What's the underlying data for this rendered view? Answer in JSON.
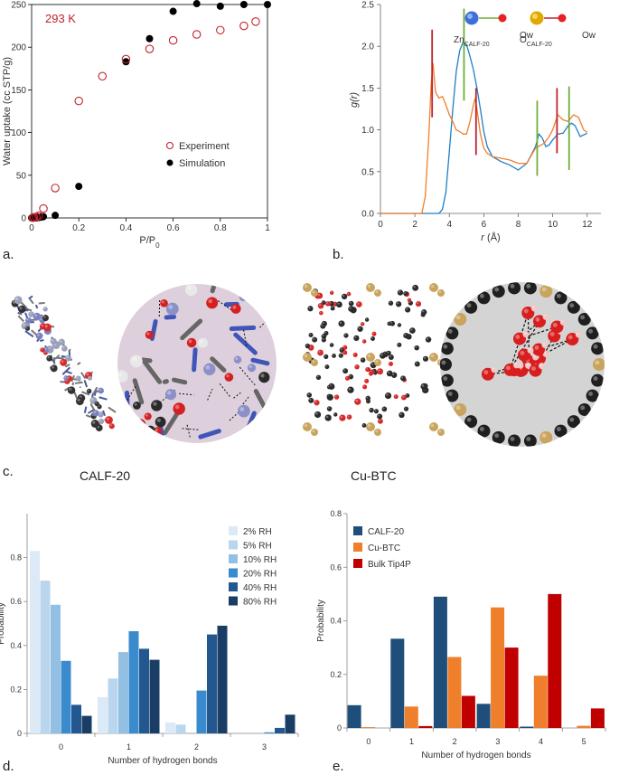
{
  "panels": {
    "a": {
      "letter": "a."
    },
    "b": {
      "letter": "b."
    },
    "c": {
      "letter": "c.",
      "left_label": "CALF-20",
      "right_label": "Cu-BTC"
    },
    "d": {
      "letter": "d."
    },
    "e": {
      "letter": "e."
    }
  },
  "colors": {
    "experiment": "#c0232c",
    "simulation": "#000000",
    "zn_curve": "#1f7fc8",
    "o_curve": "#f07f2c",
    "zn_marker": "#6fae3c",
    "o_marker": "#c0232c",
    "zn_atom": "#3d6fd8",
    "o_atom_mof": "#e0a800",
    "ow_atom": "#e82020"
  },
  "chart_data": [
    {
      "id": "a",
      "type": "scatter",
      "annotation": "293 K",
      "xlabel": "P/P0",
      "ylabel": "Water uptake (cc STP/g)",
      "xlim": [
        0,
        1
      ],
      "ylim": [
        0,
        250
      ],
      "xticks": [
        "0",
        "0.2",
        "0.4",
        "0.6",
        "0.8",
        "1"
      ],
      "yticks": [
        "0",
        "50",
        "100",
        "150",
        "200",
        "250"
      ],
      "legend_position": "center-right",
      "series": [
        {
          "name": "Experiment",
          "marker": "open-circle",
          "x": [
            0.005,
            0.01,
            0.02,
            0.03,
            0.05,
            0.1,
            0.2,
            0.3,
            0.4,
            0.5,
            0.6,
            0.7,
            0.8,
            0.9,
            0.95
          ],
          "y": [
            0.3,
            0.6,
            1.2,
            2.5,
            11,
            35,
            137,
            166,
            186,
            198,
            208,
            215,
            220,
            225,
            230
          ]
        },
        {
          "name": "Simulation",
          "marker": "filled-circle",
          "x": [
            0.0,
            0.005,
            0.01,
            0.015,
            0.02,
            0.025,
            0.03,
            0.035,
            0.04,
            0.045,
            0.05,
            0.1,
            0.2,
            0.4,
            0.5,
            0.6,
            0.7,
            0.8,
            0.9,
            1.0
          ],
          "y": [
            0,
            0,
            0,
            0,
            0,
            0.5,
            0.5,
            0.8,
            1,
            1.2,
            1.5,
            3,
            37,
            183,
            210,
            242,
            251,
            248,
            250,
            250
          ]
        }
      ]
    },
    {
      "id": "b",
      "type": "line",
      "xlabel": "r (Å)",
      "ylabel": "g(r)",
      "xlim": [
        0,
        12.8
      ],
      "ylim": [
        0,
        2.5
      ],
      "xticks": [
        "0",
        "2",
        "4",
        "6",
        "8",
        "10",
        "12"
      ],
      "yticks": [
        "0.0",
        "0.5",
        "1.0",
        "1.5",
        "2.0",
        "2.5"
      ],
      "legend": [
        {
          "left": "Zn",
          "left_sub": "CALF-20",
          "right": "Ow"
        },
        {
          "left": "O",
          "left_sub": "CALF-20",
          "right": "Ow"
        }
      ],
      "series": [
        {
          "name": "Zn-Ow",
          "x": [
            0,
            3.4,
            3.6,
            3.8,
            4.0,
            4.2,
            4.4,
            4.6,
            4.8,
            5.0,
            5.2,
            5.4,
            5.6,
            5.8,
            6.0,
            6.2,
            6.5,
            7.0,
            7.5,
            8.0,
            8.5,
            8.8,
            9.0,
            9.2,
            9.4,
            9.6,
            9.8,
            10.0,
            10.3,
            10.6,
            10.9,
            11.1,
            11.3,
            11.6,
            12.0
          ],
          "y": [
            0,
            0,
            0.05,
            0.25,
            0.75,
            1.25,
            1.7,
            1.95,
            2.05,
            2.02,
            1.88,
            1.72,
            1.5,
            1.25,
            0.98,
            0.8,
            0.68,
            0.62,
            0.58,
            0.52,
            0.6,
            0.72,
            0.8,
            0.95,
            0.9,
            0.8,
            0.82,
            0.88,
            0.95,
            0.96,
            1.05,
            1.08,
            1.05,
            0.92,
            0.96
          ]
        },
        {
          "name": "O-Ow",
          "x": [
            0,
            2.4,
            2.6,
            2.8,
            2.95,
            3.05,
            3.2,
            3.4,
            3.6,
            3.8,
            4.0,
            4.2,
            4.4,
            4.6,
            4.8,
            5.0,
            5.2,
            5.4,
            5.5,
            5.6,
            5.8,
            6.0,
            6.2,
            6.5,
            7.0,
            7.5,
            8.0,
            8.5,
            9.0,
            9.5,
            9.8,
            10.0,
            10.3,
            10.6,
            10.9,
            11.2,
            11.5,
            11.8,
            12.0
          ],
          "y": [
            0,
            0,
            0.2,
            0.9,
            1.55,
            1.8,
            1.45,
            1.38,
            1.4,
            1.3,
            1.18,
            1.1,
            1.0,
            0.98,
            0.95,
            0.95,
            1.1,
            1.3,
            1.38,
            1.25,
            0.95,
            0.78,
            0.72,
            0.68,
            0.66,
            0.64,
            0.6,
            0.6,
            0.78,
            0.84,
            0.92,
            1.0,
            1.18,
            1.12,
            1.1,
            1.18,
            1.15,
            1.0,
            0.97
          ]
        }
      ],
      "markers": [
        {
          "series": "O-Ow",
          "x": 3.0,
          "y_range": [
            1.15,
            2.2
          ]
        },
        {
          "series": "Zn-Ow",
          "x": 4.85,
          "y_range": [
            1.35,
            2.45
          ]
        },
        {
          "series": "O-Ow",
          "x": 5.55,
          "y_range": [
            0.7,
            1.5
          ]
        },
        {
          "series": "Zn-Ow",
          "x": 9.1,
          "y_range": [
            0.45,
            1.35
          ]
        },
        {
          "series": "O-Ow",
          "x": 10.25,
          "y_range": [
            0.72,
            1.5
          ]
        },
        {
          "series": "Zn-Ow",
          "x": 10.95,
          "y_range": [
            0.52,
            1.52
          ]
        }
      ]
    },
    {
      "id": "d",
      "type": "bar",
      "xlabel": "Number of hydrogen bonds",
      "ylabel": "Probability",
      "ylim": [
        0,
        1.0
      ],
      "yticks": [
        "0",
        "0.2",
        "0.4",
        "0.6",
        "0.8"
      ],
      "categories": [
        "0",
        "1",
        "2",
        "3"
      ],
      "legend_position": "top-right",
      "series": [
        {
          "name": "2% RH",
          "color": "#dce9f6",
          "values": [
            0.83,
            0.165,
            0.05,
            0.0
          ]
        },
        {
          "name": "5% RH",
          "color": "#bad6ee",
          "values": [
            0.695,
            0.25,
            0.04,
            0.0
          ]
        },
        {
          "name": "10% RH",
          "color": "#93bfe3",
          "values": [
            0.585,
            0.37,
            0.0,
            0.0
          ]
        },
        {
          "name": "20% RH",
          "color": "#3a8bcd",
          "values": [
            0.33,
            0.465,
            0.195,
            0.005
          ]
        },
        {
          "name": "40% RH",
          "color": "#23578f",
          "values": [
            0.13,
            0.385,
            0.45,
            0.025
          ]
        },
        {
          "name": "80% RH",
          "color": "#1a3d66",
          "values": [
            0.08,
            0.335,
            0.49,
            0.085
          ]
        }
      ]
    },
    {
      "id": "e",
      "type": "bar",
      "xlabel": "Number of hydrogen bonds",
      "ylabel": "Probability",
      "ylim": [
        0,
        0.8
      ],
      "yticks": [
        "0",
        "0.2",
        "0.4",
        "0.6",
        "0.8"
      ],
      "categories": [
        "0",
        "1",
        "2",
        "3",
        "4",
        "5"
      ],
      "legend_position": "top-left",
      "series": [
        {
          "name": "CALF-20",
          "color": "#1f4e7a",
          "values": [
            0.085,
            0.333,
            0.49,
            0.09,
            0.005,
            0.0
          ]
        },
        {
          "name": "Cu-BTC",
          "color": "#f07f2c",
          "values": [
            0.003,
            0.08,
            0.265,
            0.45,
            0.195,
            0.008
          ]
        },
        {
          "name": "Bulk Tip4P",
          "color": "#c00000",
          "values": [
            0.0,
            0.007,
            0.12,
            0.3,
            0.5,
            0.073
          ]
        }
      ]
    }
  ]
}
